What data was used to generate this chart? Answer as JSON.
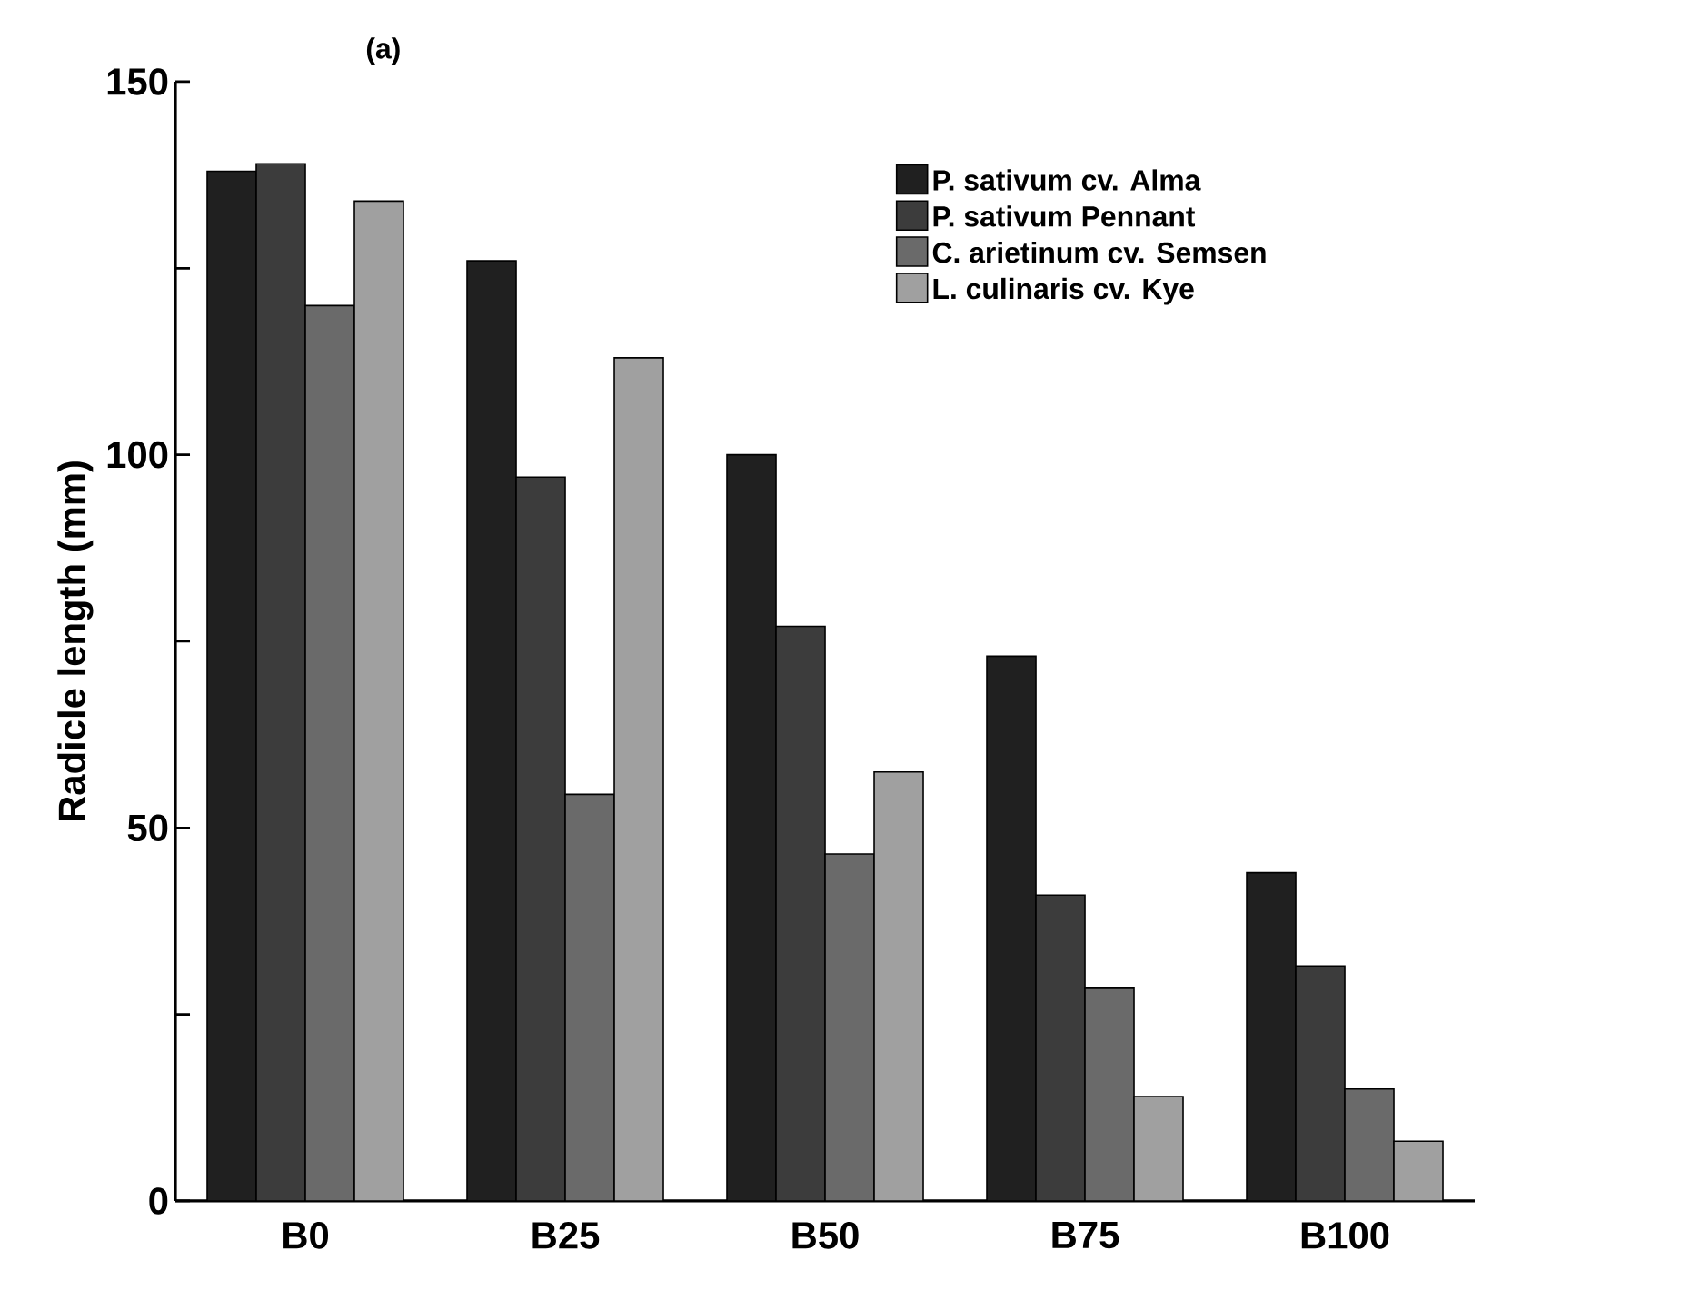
{
  "chart_data": {
    "type": "bar",
    "title": "(a)",
    "ylabel": "Radicle length (mm)",
    "categories": [
      "B0",
      "B25",
      "B50",
      "B75",
      "B100"
    ],
    "series": [
      {
        "name": "P. sativum cv. Alma",
        "color": "#202020",
        "values": [
          138,
          126,
          100,
          73,
          44
        ]
      },
      {
        "name": "P. sativum Pennant",
        "color": "#3c3c3c",
        "values": [
          139,
          97,
          77,
          41,
          31.5
        ]
      },
      {
        "name": "C. arietinum cv. Semsen",
        "color": "#6a6a6a",
        "values": [
          120,
          54.5,
          46.5,
          28.5,
          15
        ]
      },
      {
        "name": "L. culinaris cv. Kye",
        "color": "#a0a0a0",
        "values": [
          134,
          113,
          57.5,
          14,
          8
        ]
      }
    ],
    "ylim": [
      0,
      150
    ],
    "yticks": [
      0,
      {
        "value": 25,
        "label": null
      },
      50,
      {
        "value": 75,
        "label": null
      },
      100,
      {
        "value": 125,
        "label": null
      },
      150
    ],
    "legend": "top right",
    "grid": false
  }
}
